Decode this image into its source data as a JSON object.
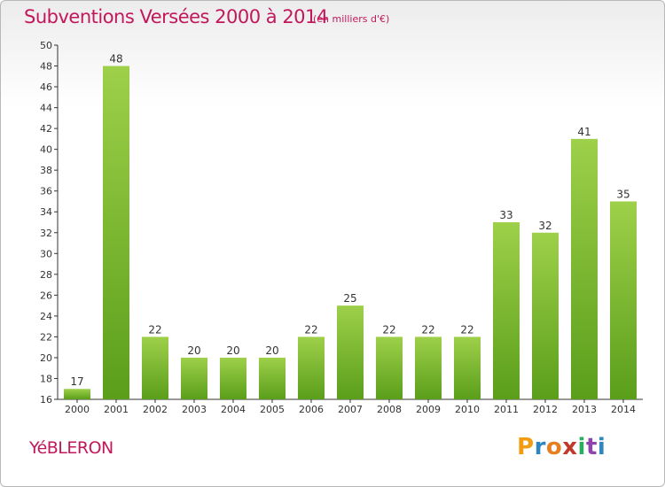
{
  "header": {
    "title": "Subventions Versées 2000 à 2014",
    "subtitle": "(en milliers d'€)"
  },
  "footer": {
    "town": "YéBLERON",
    "logo_letters": [
      "P",
      "r",
      "o",
      "x",
      "i",
      "t",
      "i"
    ],
    "logo_colors": [
      "#f39c12",
      "#2e86c1",
      "#e67e22",
      "#c0392b",
      "#27ae60",
      "#8e44ad",
      "#2e86c1"
    ]
  },
  "colors": {
    "bar_top": "#9ed04a",
    "bar_bottom": "#5a9e1a",
    "axis": "#333333",
    "grid": "#d0d0d0"
  },
  "chart_data": {
    "type": "bar",
    "title": "Subventions Versées 2000 à 2014",
    "subtitle": "(en milliers d'€)",
    "categories": [
      "2000",
      "2001",
      "2002",
      "2003",
      "2004",
      "2005",
      "2006",
      "2007",
      "2008",
      "2009",
      "2010",
      "2011",
      "2012",
      "2013",
      "2014"
    ],
    "values": [
      17,
      48,
      22,
      20,
      20,
      20,
      22,
      25,
      22,
      22,
      22,
      33,
      32,
      41,
      35
    ],
    "ylim": [
      16,
      50
    ],
    "yticks": [
      16,
      18,
      20,
      22,
      24,
      26,
      28,
      30,
      32,
      34,
      36,
      38,
      40,
      42,
      44,
      46,
      48,
      50
    ],
    "grid": false,
    "data_labels": true
  }
}
